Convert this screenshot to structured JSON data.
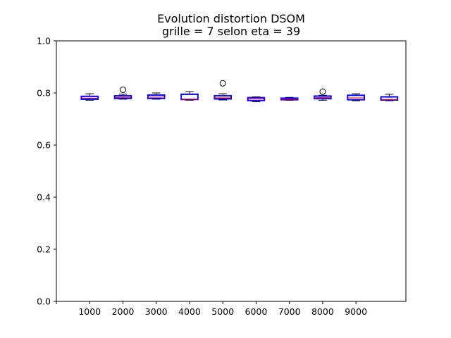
{
  "chart_data": {
    "type": "box",
    "title": [
      "Evolution distortion DSOM",
      "grille = 7 selon eta = 39"
    ],
    "xlabel": "",
    "ylabel": "",
    "ylim": [
      0,
      1.0
    ],
    "xlim": [
      0,
      10.5
    ],
    "yticks": [
      "0.0",
      "0.2",
      "0.4",
      "0.6",
      "0.8",
      "1.0"
    ],
    "xtick_labels": [
      "1000",
      "2000",
      "3000",
      "4000",
      "5000",
      "6000",
      "7000",
      "8000",
      "9000"
    ],
    "xtick_positions": [
      1,
      2,
      3,
      4,
      5,
      6,
      7,
      8,
      9
    ],
    "colors": {
      "box": "#0000ff",
      "median": "#ff0000",
      "whisker": "#000000"
    },
    "boxes": [
      {
        "pos": 1,
        "whislo": 0.772,
        "q1": 0.776,
        "med": 0.78,
        "q3": 0.787,
        "whishi": 0.797,
        "fliers": []
      },
      {
        "pos": 2,
        "whislo": 0.776,
        "q1": 0.779,
        "med": 0.783,
        "q3": 0.789,
        "whishi": 0.795,
        "fliers": [
          0.812
        ]
      },
      {
        "pos": 3,
        "whislo": 0.776,
        "q1": 0.779,
        "med": 0.784,
        "q3": 0.792,
        "whishi": 0.8,
        "fliers": []
      },
      {
        "pos": 4,
        "whislo": 0.772,
        "q1": 0.775,
        "med": 0.776,
        "q3": 0.795,
        "whishi": 0.805,
        "fliers": []
      },
      {
        "pos": 5,
        "whislo": 0.773,
        "q1": 0.777,
        "med": 0.781,
        "q3": 0.789,
        "whishi": 0.797,
        "fliers": [
          0.837
        ]
      },
      {
        "pos": 6,
        "whislo": 0.766,
        "q1": 0.771,
        "med": 0.778,
        "q3": 0.782,
        "whishi": 0.785,
        "fliers": []
      },
      {
        "pos": 7,
        "whislo": 0.772,
        "q1": 0.774,
        "med": 0.776,
        "q3": 0.78,
        "whishi": 0.783,
        "fliers": []
      },
      {
        "pos": 8,
        "whislo": 0.772,
        "q1": 0.778,
        "med": 0.782,
        "q3": 0.788,
        "whishi": 0.791,
        "fliers": [
          0.805
        ]
      },
      {
        "pos": 9,
        "whislo": 0.77,
        "q1": 0.774,
        "med": 0.781,
        "q3": 0.791,
        "whishi": 0.797,
        "fliers": []
      },
      {
        "pos": 10,
        "whislo": 0.77,
        "q1": 0.773,
        "med": 0.775,
        "q3": 0.785,
        "whishi": 0.795,
        "fliers": []
      }
    ]
  }
}
